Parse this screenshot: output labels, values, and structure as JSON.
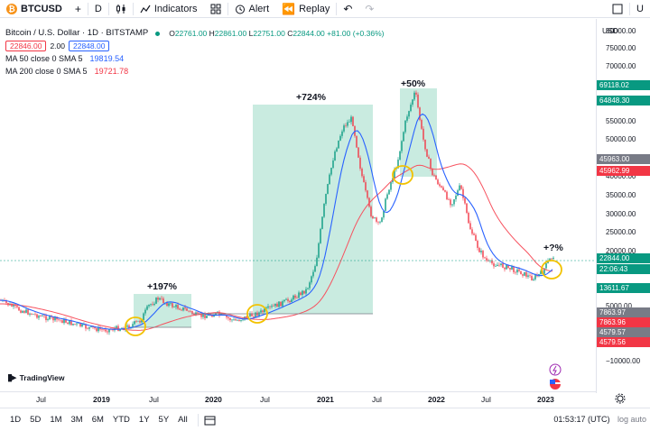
{
  "toolbar": {
    "symbol": "BTCUSD",
    "interval": "D",
    "indicators_label": "Indicators",
    "alert_label": "Alert",
    "replay_label": "Replay",
    "right_cut_label": "U"
  },
  "legend": {
    "title": "Bitcoin / U.S. Dollar · 1D · BITSTAMP",
    "o": "22761.00",
    "h": "22861.00",
    "l": "22751.00",
    "c": "22844.00",
    "change": "+81.00 (+0.36%)",
    "bid": "22846.00",
    "spread": "2.00",
    "ask": "22848.00",
    "ma50_label": "MA 50 close 0 SMA 5",
    "ma50_value": "19819.54",
    "ma200_label": "MA 200 close 0 SMA 5",
    "ma200_value": "19721.78"
  },
  "price_axis": {
    "currency": "USD",
    "labels": [
      "80000.00",
      "75000.00",
      "70000.00",
      "65000.00",
      "60000.00",
      "55000.00",
      "50000.00",
      "40000.00",
      "35000.00",
      "30000.00",
      "25000.00",
      "20000.00",
      "15000.00",
      "10000.00",
      "5000.00",
      "0.00",
      "−5000.00",
      "−10000.00"
    ],
    "tags": [
      {
        "text": "69118.02",
        "color": "#089981"
      },
      {
        "text": "64848.30",
        "color": "#089981"
      },
      {
        "text": "45963.00",
        "color": "#787b86"
      },
      {
        "text": "45962.99",
        "color": "#f23645"
      },
      {
        "text": "22844.00",
        "color": "#089981"
      },
      {
        "text": "22:06:43",
        "color": "#089981"
      },
      {
        "text": "13611.67",
        "color": "#089981"
      },
      {
        "text": "7863.97",
        "color": "#787b86"
      },
      {
        "text": "7863.96",
        "color": "#f23645"
      },
      {
        "text": "4579.57",
        "color": "#787b86"
      },
      {
        "text": "4579.56",
        "color": "#f23645"
      }
    ]
  },
  "time_axis": [
    "Jul",
    "2019",
    "Jul",
    "2020",
    "Jul",
    "2021",
    "Jul",
    "2022",
    "Jul",
    "2023"
  ],
  "annotations": {
    "a1": "+197%",
    "a2": "+724%",
    "a3": "+50%",
    "a4": "+?%"
  },
  "brand": "TradingView",
  "ranges": [
    "1D",
    "5D",
    "1M",
    "3M",
    "6M",
    "YTD",
    "1Y",
    "5Y",
    "All"
  ],
  "clock": "01:53:17 (UTC)",
  "clock_tail": "log auto",
  "colors": {
    "up": "#089981",
    "down": "#f23645",
    "ma50": "#2962ff",
    "ma200": "#f7525f",
    "highlight": "#b7e4d6",
    "circle": "#f2c200"
  }
}
